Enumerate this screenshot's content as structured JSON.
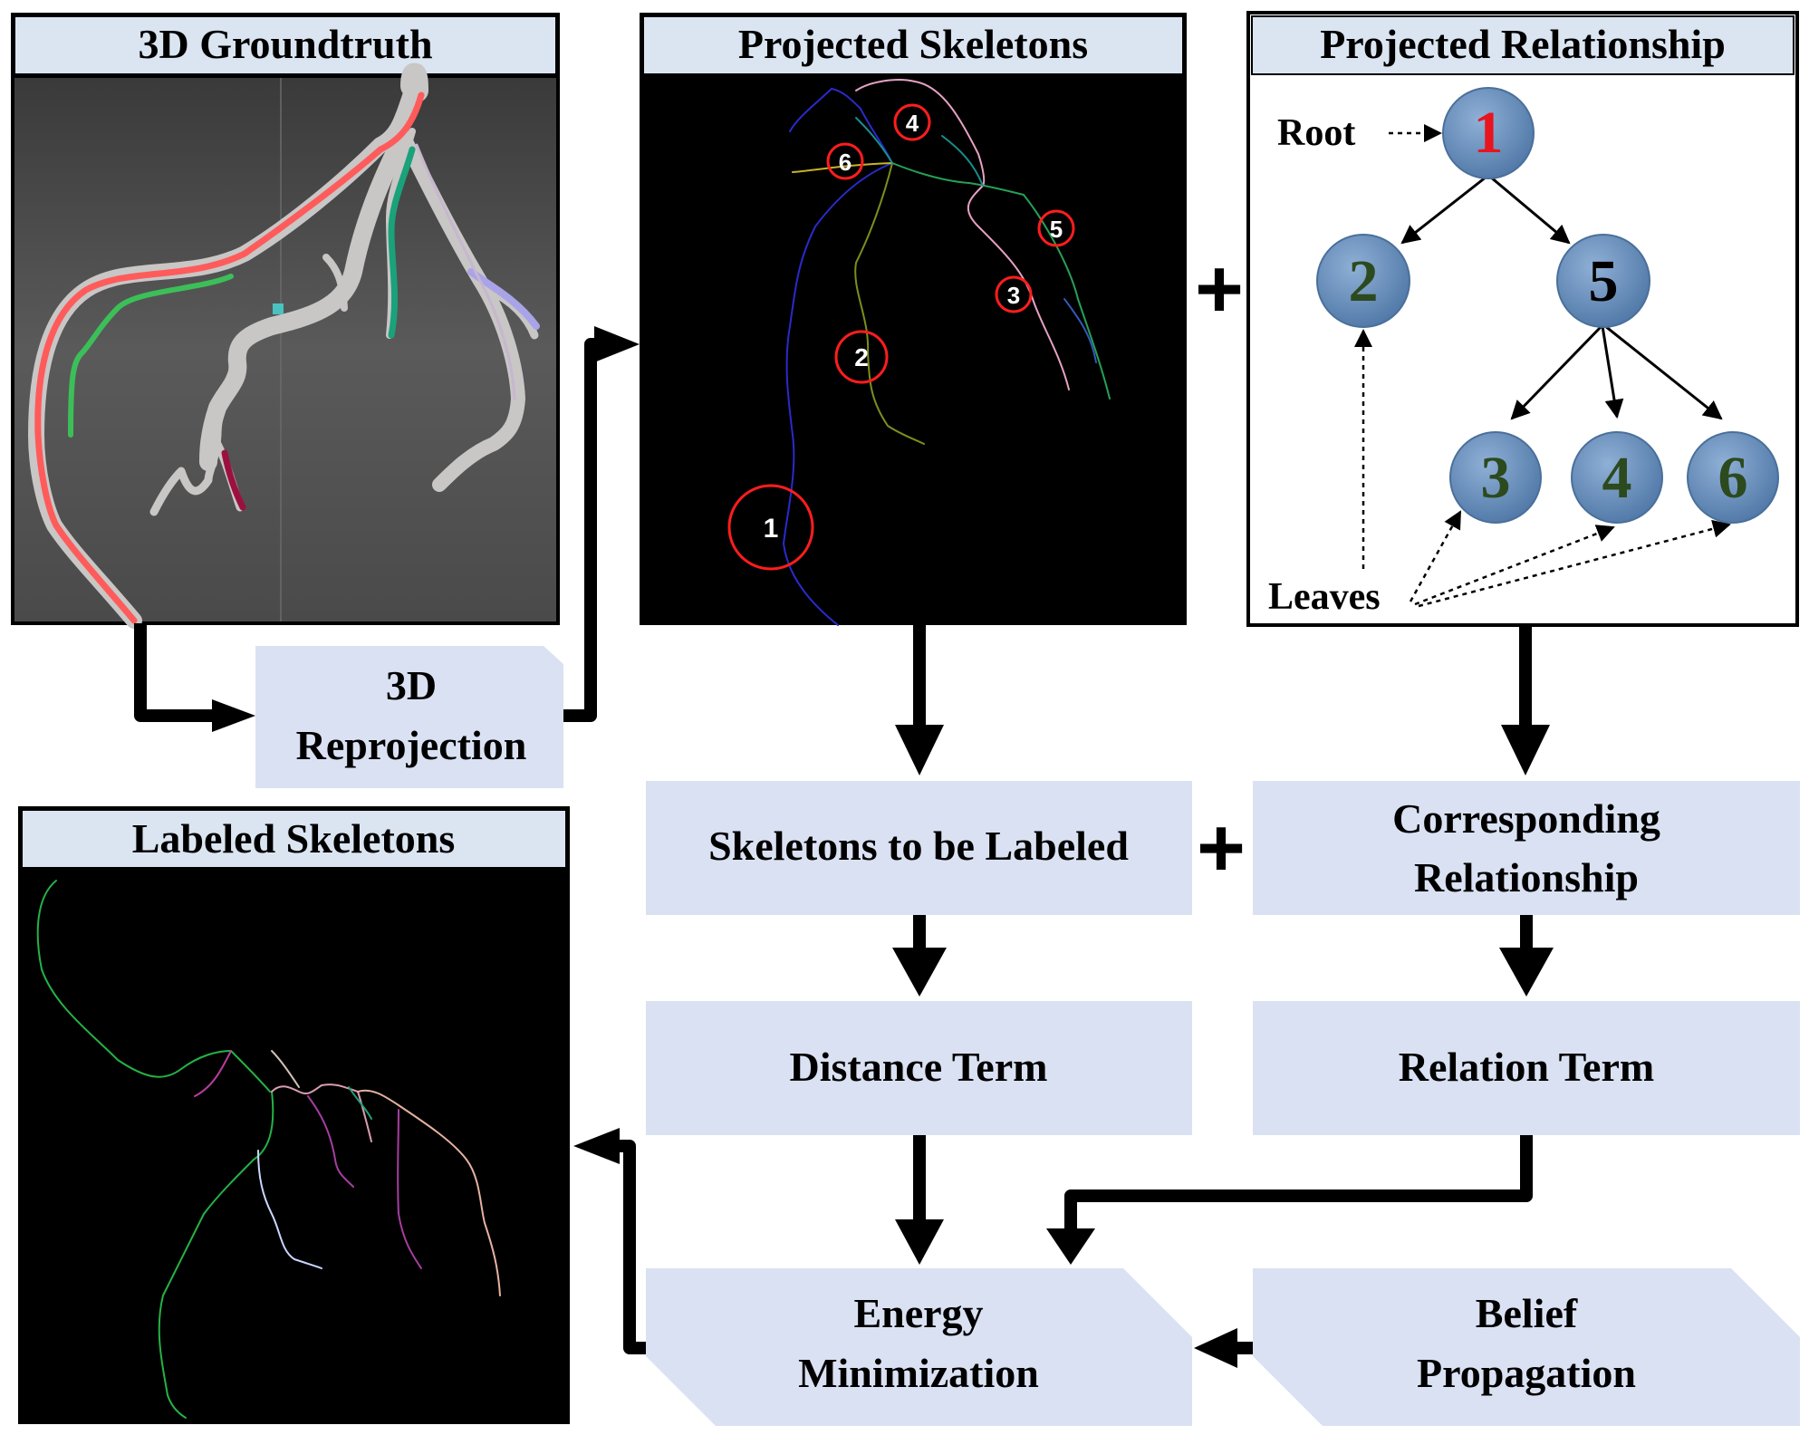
{
  "panels": {
    "groundtruth_title": "3D Groundtruth",
    "projected_skeletons_title": "Projected Skeletons",
    "projected_relationship_title": "Projected Relationship",
    "labeled_skeletons_title": "Labeled Skeletons"
  },
  "skeleton_markers": [
    "1",
    "2",
    "3",
    "4",
    "5",
    "6"
  ],
  "tree": {
    "root_label": "Root",
    "leaves_label": "Leaves",
    "nodes": [
      "1",
      "2",
      "5",
      "3",
      "4",
      "6"
    ],
    "edges": [
      [
        "1",
        "2"
      ],
      [
        "1",
        "5"
      ],
      [
        "5",
        "3"
      ],
      [
        "5",
        "4"
      ],
      [
        "5",
        "6"
      ]
    ],
    "colors": {
      "node_fill": "#5b84b1",
      "root_text": "#e8141e",
      "leaf_text": "#2c4a1e",
      "inner_text": "#000000"
    }
  },
  "steps": {
    "reprojection": [
      "3D",
      "Reprojection"
    ],
    "skeletons_to_label": "Skeletons to be Labeled",
    "corresponding": [
      "Corresponding",
      "Relationship"
    ],
    "distance": "Distance Term",
    "relation": "Relation Term",
    "energy": [
      "Energy",
      "Minimization"
    ],
    "belief": [
      "Belief",
      "Propagation"
    ]
  },
  "operators": [
    "+",
    "+"
  ],
  "colors": {
    "box_fill": "#dae1f2",
    "title_fill": "#dbe5f1",
    "panel_dark": "#000000"
  }
}
